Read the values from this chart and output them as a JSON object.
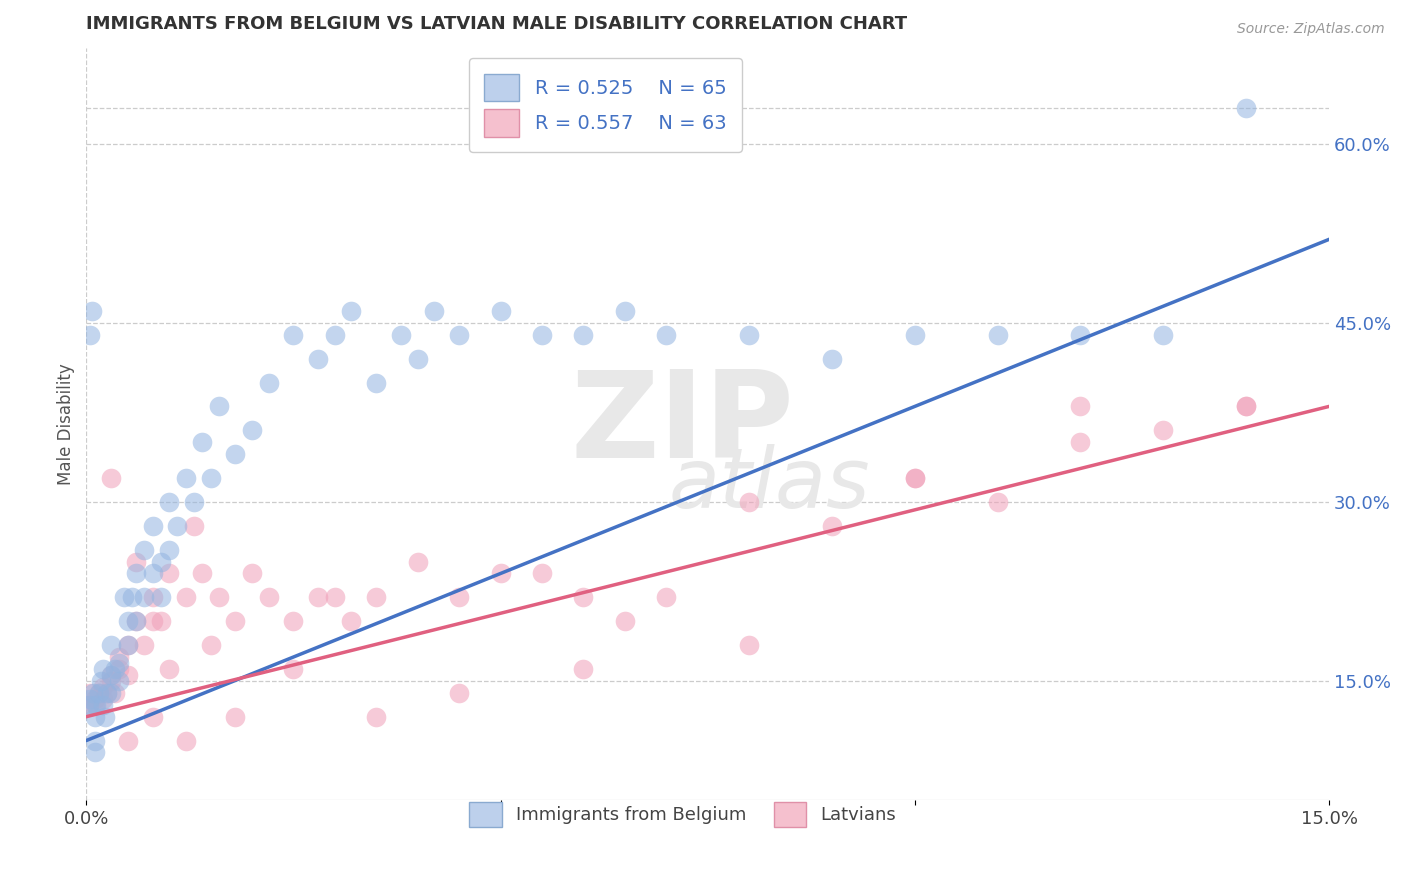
{
  "title": "IMMIGRANTS FROM BELGIUM VS LATVIAN MALE DISABILITY CORRELATION CHART",
  "source": "Source: ZipAtlas.com",
  "ylabel": "Male Disability",
  "xlim": [
    0.0,
    0.15
  ],
  "ylim": [
    0.05,
    0.68
  ],
  "xtick_vals": [
    0.0,
    0.05,
    0.1,
    0.15
  ],
  "xtick_labels": [
    "0.0%",
    "",
    "",
    "15.0%"
  ],
  "ytick_right_vals": [
    0.15,
    0.3,
    0.45,
    0.6
  ],
  "ytick_right_labels": [
    "15.0%",
    "30.0%",
    "45.0%",
    "60.0%"
  ],
  "blue_color": "#4472C4",
  "pink_color": "#E06080",
  "blue_scatter_color": "#92B4E0",
  "pink_scatter_color": "#F0A0B8",
  "blue_trend_x": [
    0.0,
    0.15
  ],
  "blue_trend_y": [
    0.1,
    0.52
  ],
  "pink_trend_x": [
    0.0,
    0.15
  ],
  "pink_trend_y": [
    0.12,
    0.38
  ],
  "blue_scatter_x": [
    0.0003,
    0.0005,
    0.0008,
    0.001,
    0.0012,
    0.0015,
    0.0018,
    0.002,
    0.0022,
    0.0025,
    0.003,
    0.003,
    0.0035,
    0.004,
    0.004,
    0.0045,
    0.005,
    0.005,
    0.0055,
    0.006,
    0.006,
    0.007,
    0.007,
    0.008,
    0.008,
    0.009,
    0.009,
    0.01,
    0.01,
    0.011,
    0.012,
    0.013,
    0.014,
    0.015,
    0.016,
    0.018,
    0.02,
    0.022,
    0.025,
    0.028,
    0.03,
    0.032,
    0.035,
    0.038,
    0.04,
    0.042,
    0.045,
    0.05,
    0.055,
    0.06,
    0.065,
    0.07,
    0.08,
    0.09,
    0.1,
    0.11,
    0.12,
    0.13,
    0.14,
    0.003,
    0.002,
    0.001,
    0.001,
    0.0005,
    0.0007
  ],
  "blue_scatter_y": [
    0.13,
    0.135,
    0.14,
    0.12,
    0.13,
    0.14,
    0.15,
    0.13,
    0.12,
    0.14,
    0.155,
    0.14,
    0.16,
    0.15,
    0.165,
    0.22,
    0.18,
    0.2,
    0.22,
    0.24,
    0.2,
    0.26,
    0.22,
    0.24,
    0.28,
    0.25,
    0.22,
    0.26,
    0.3,
    0.28,
    0.32,
    0.3,
    0.35,
    0.32,
    0.38,
    0.34,
    0.36,
    0.4,
    0.44,
    0.42,
    0.44,
    0.46,
    0.4,
    0.44,
    0.42,
    0.46,
    0.44,
    0.46,
    0.44,
    0.44,
    0.46,
    0.44,
    0.44,
    0.42,
    0.44,
    0.44,
    0.44,
    0.44,
    0.63,
    0.18,
    0.16,
    0.1,
    0.09,
    0.44,
    0.46
  ],
  "pink_scatter_x": [
    0.0003,
    0.0005,
    0.001,
    0.001,
    0.0015,
    0.002,
    0.002,
    0.0025,
    0.003,
    0.003,
    0.0035,
    0.004,
    0.004,
    0.005,
    0.005,
    0.006,
    0.006,
    0.007,
    0.008,
    0.008,
    0.009,
    0.01,
    0.01,
    0.012,
    0.013,
    0.014,
    0.015,
    0.016,
    0.018,
    0.02,
    0.022,
    0.025,
    0.028,
    0.03,
    0.032,
    0.035,
    0.04,
    0.045,
    0.05,
    0.055,
    0.06,
    0.065,
    0.07,
    0.08,
    0.09,
    0.1,
    0.11,
    0.12,
    0.13,
    0.14,
    0.003,
    0.005,
    0.008,
    0.012,
    0.018,
    0.025,
    0.035,
    0.045,
    0.06,
    0.08,
    0.1,
    0.12,
    0.14
  ],
  "pink_scatter_y": [
    0.13,
    0.14,
    0.13,
    0.135,
    0.14,
    0.135,
    0.145,
    0.14,
    0.15,
    0.155,
    0.14,
    0.16,
    0.17,
    0.155,
    0.18,
    0.25,
    0.2,
    0.18,
    0.2,
    0.22,
    0.2,
    0.16,
    0.24,
    0.22,
    0.28,
    0.24,
    0.18,
    0.22,
    0.2,
    0.24,
    0.22,
    0.2,
    0.22,
    0.22,
    0.2,
    0.22,
    0.25,
    0.22,
    0.24,
    0.24,
    0.22,
    0.2,
    0.22,
    0.3,
    0.28,
    0.32,
    0.3,
    0.38,
    0.36,
    0.38,
    0.32,
    0.1,
    0.12,
    0.1,
    0.12,
    0.16,
    0.12,
    0.14,
    0.16,
    0.18,
    0.32,
    0.35,
    0.38
  ],
  "legend_r1": "R = 0.525",
  "legend_n1": "N = 65",
  "legend_r2": "R = 0.557",
  "legend_n2": "N = 63",
  "blue_legend_fill": "#BDD0EC",
  "pink_legend_fill": "#F5C0CE",
  "background_color": "#FFFFFF",
  "grid_color": "#CCCCCC",
  "watermark_color": "#E8E8E8"
}
